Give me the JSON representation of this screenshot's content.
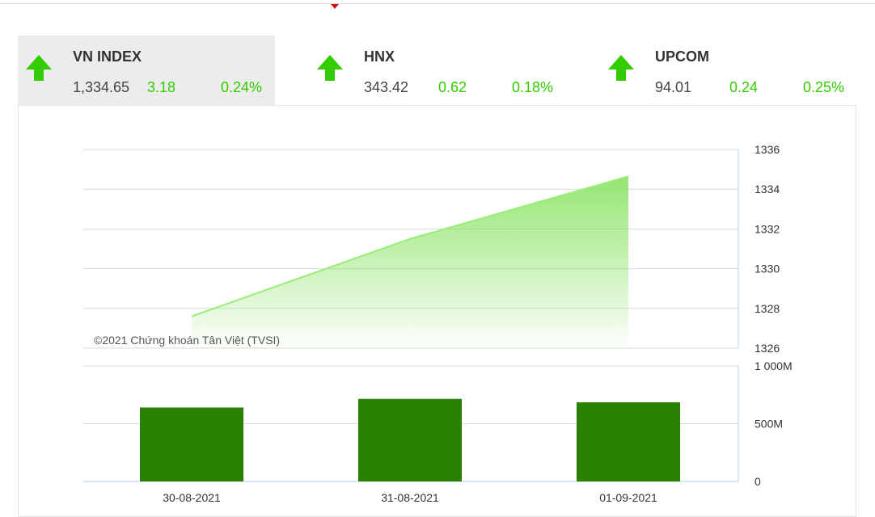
{
  "indices": [
    {
      "name": "VN INDEX",
      "value": "1,334.65",
      "change": "3.18",
      "percent": "0.24%",
      "direction": "up"
    },
    {
      "name": "HNX",
      "value": "343.42",
      "change": "0.62",
      "percent": "0.18%",
      "direction": "up"
    },
    {
      "name": "UPCOM",
      "value": "94.01",
      "change": "0.24",
      "percent": "0.25%",
      "direction": "up"
    }
  ],
  "colors": {
    "up": "#33cc00",
    "area_line": "#99ee77",
    "bar": "#2a8000",
    "grid": "#d9d9d9",
    "axis": "#b8cde0"
  },
  "chart_data": [
    {
      "type": "area",
      "x": [
        "30-08-2021",
        "31-08-2021",
        "01-09-2021"
      ],
      "series": [
        {
          "values": [
            1327.6,
            1331.5,
            1334.65
          ]
        }
      ],
      "ylim": [
        1326,
        1336
      ],
      "yticks": [
        "1336",
        "1334",
        "1332",
        "1330",
        "1328",
        "1326"
      ],
      "ytick_values": [
        1336,
        1334,
        1332,
        1330,
        1328,
        1326
      ],
      "grid": true,
      "credit": "©2021 Chứng khoán Tân Việt (TVSI)"
    },
    {
      "type": "bar",
      "categories": [
        "30-08-2021",
        "31-08-2021",
        "01-09-2021"
      ],
      "values": [
        640,
        715,
        685
      ],
      "ylim": [
        0,
        1000
      ],
      "yticks": [
        "1 000M",
        "500M",
        "0"
      ],
      "ytick_values": [
        1000,
        500,
        0
      ],
      "grid": true
    }
  ]
}
